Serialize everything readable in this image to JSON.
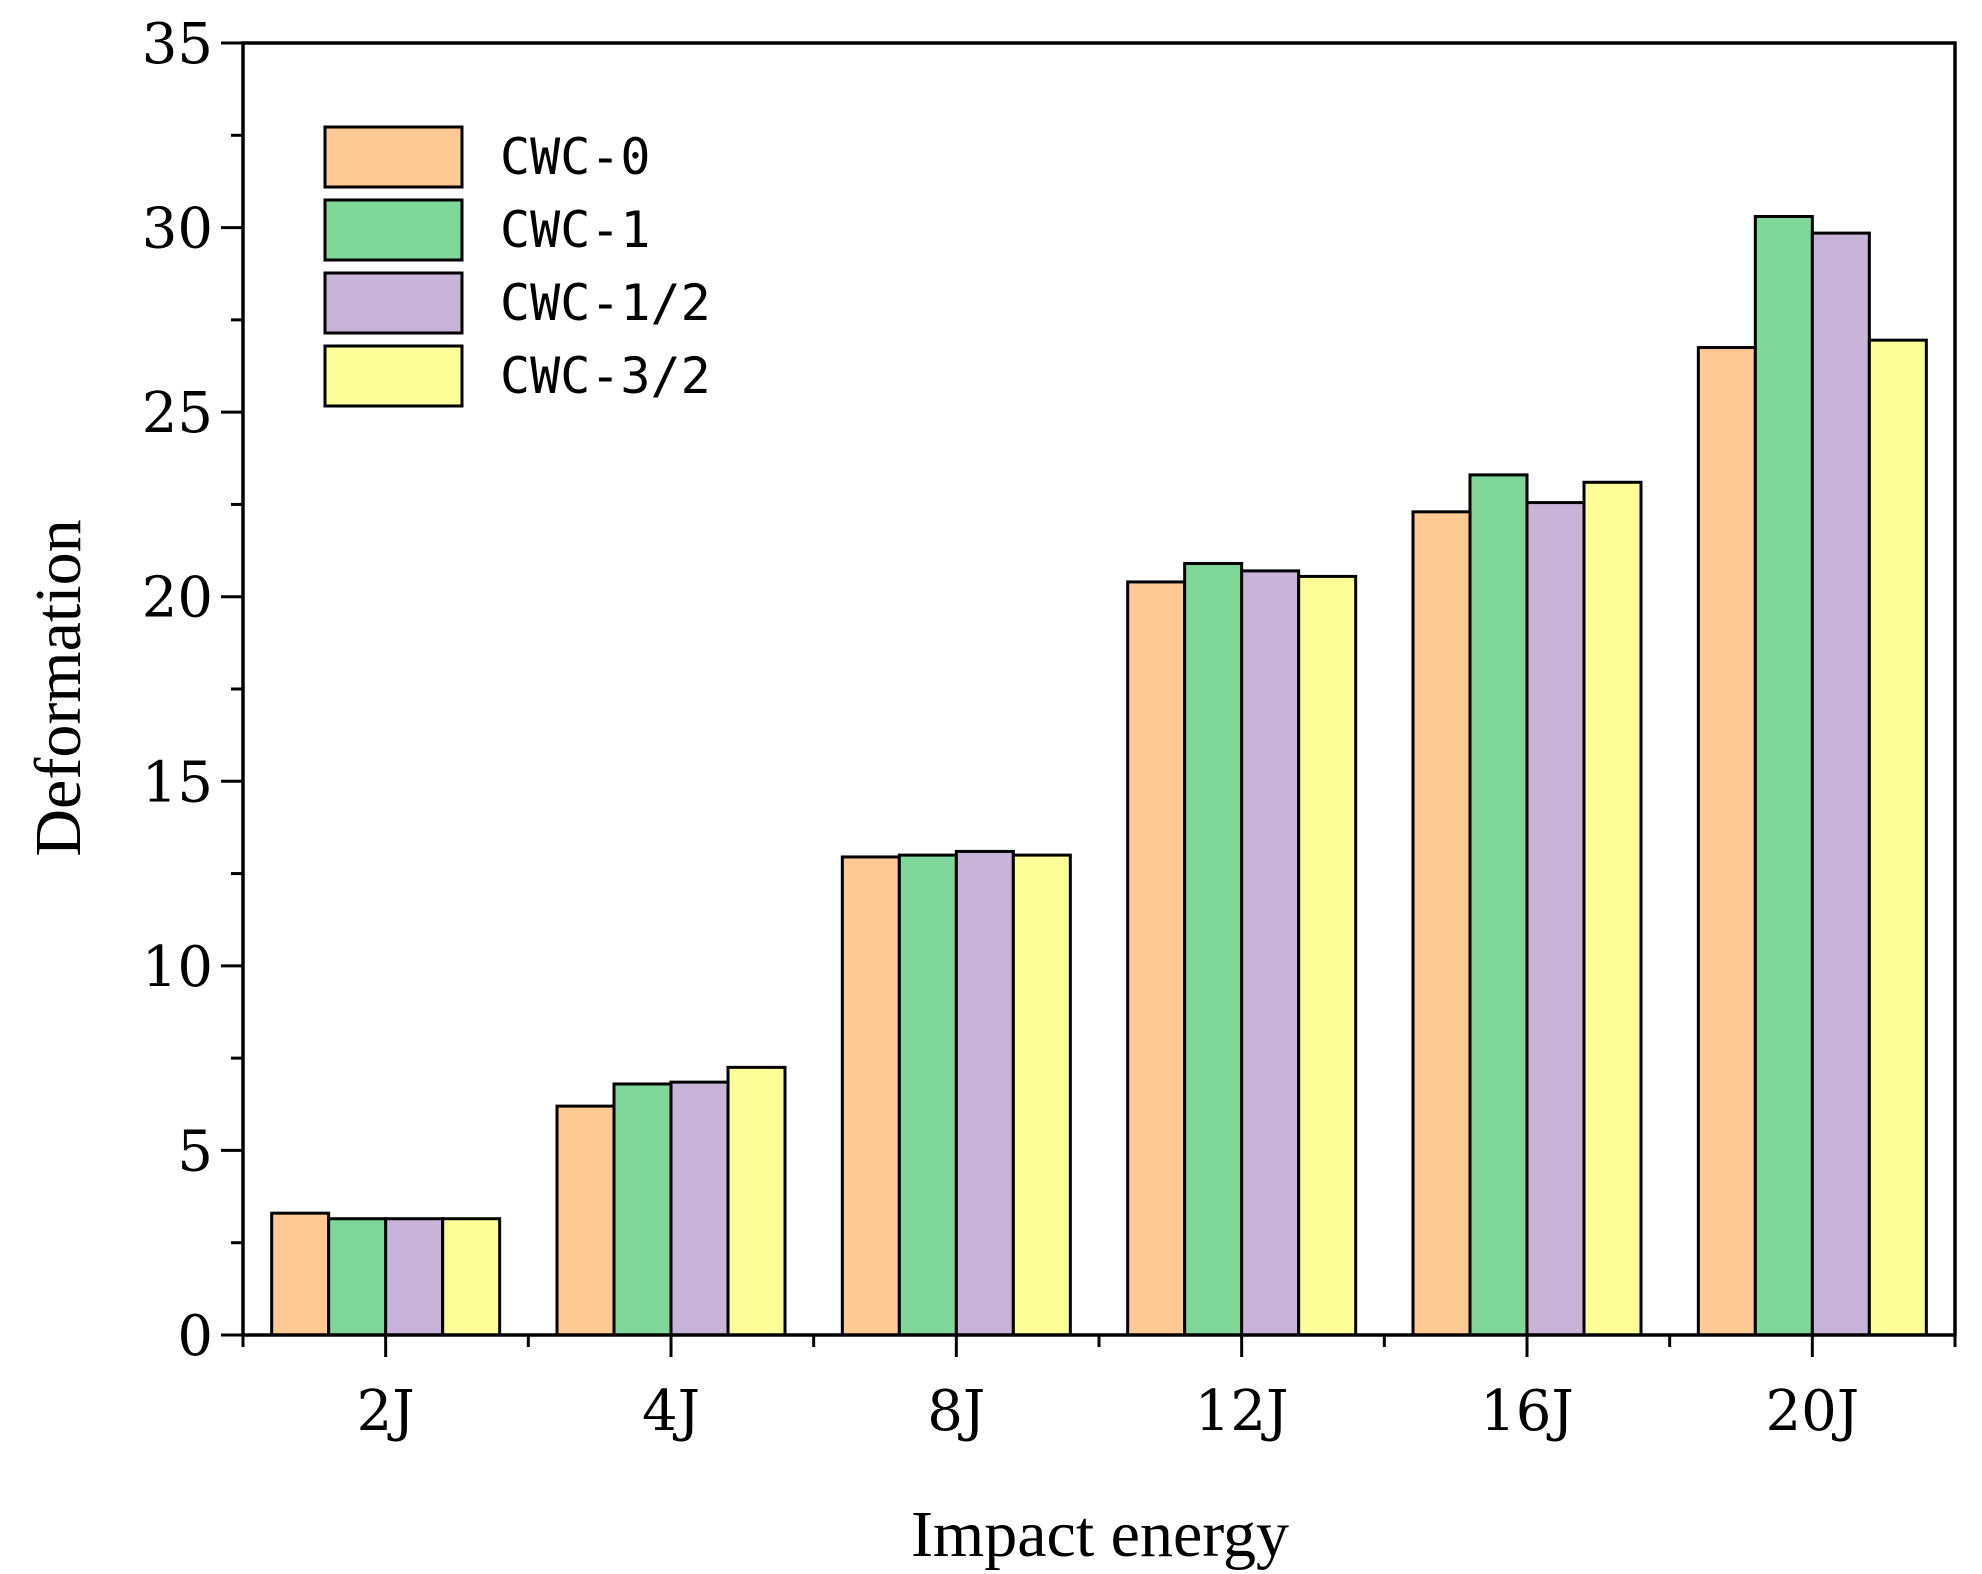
{
  "chart_data": {
    "type": "bar",
    "title": "",
    "xlabel": "Impact energy",
    "ylabel": "Deformation",
    "ylim": [
      0,
      35
    ],
    "yticks": [
      0,
      5,
      10,
      15,
      20,
      25,
      30,
      35
    ],
    "grid": false,
    "legend_position": "top-left",
    "categories": [
      "2J",
      "4J",
      "8J",
      "12J",
      "16J",
      "20J"
    ],
    "series": [
      {
        "name": "CWC-0",
        "color": "#FFC993",
        "values": [
          3.3,
          6.2,
          12.95,
          20.4,
          22.3,
          26.75
        ]
      },
      {
        "name": "CWC-1",
        "color": "#7FD899",
        "values": [
          3.15,
          6.8,
          13.0,
          20.9,
          23.3,
          30.3
        ]
      },
      {
        "name": "CWC-1/2",
        "color": "#C9B3D9",
        "values": [
          3.15,
          6.85,
          13.1,
          20.7,
          22.55,
          29.85
        ]
      },
      {
        "name": "CWC-3/2",
        "color": "#FFFF99",
        "values": [
          3.15,
          7.25,
          13.0,
          20.55,
          23.1,
          26.95
        ]
      }
    ]
  }
}
